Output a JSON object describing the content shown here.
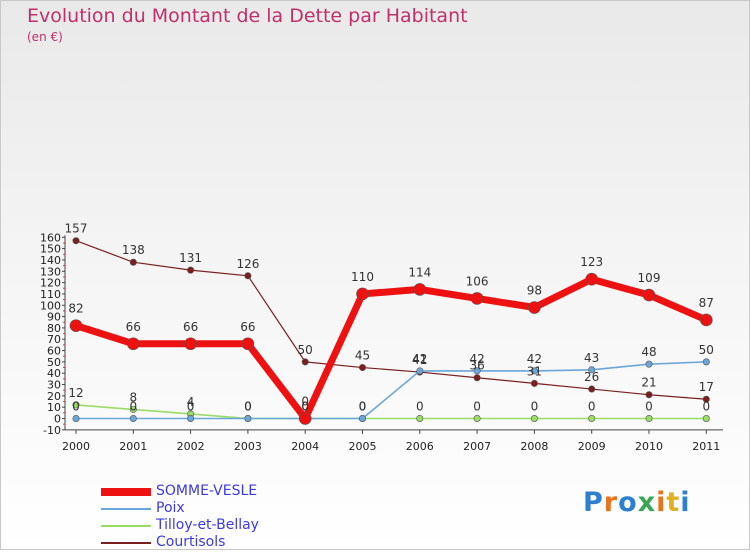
{
  "chart_data": {
    "type": "line",
    "title": "Evolution du Montant de la Dette par Habitant",
    "subtitle": "(en €)",
    "x": [
      "2000",
      "2001",
      "2002",
      "2003",
      "2004",
      "2005",
      "2006",
      "2007",
      "2008",
      "2009",
      "2010",
      "2011"
    ],
    "ylim": [
      -10,
      160
    ],
    "yticks": [
      -10,
      0,
      10,
      20,
      30,
      40,
      50,
      60,
      70,
      80,
      90,
      100,
      110,
      120,
      130,
      140,
      150,
      160
    ],
    "grid": false,
    "legend_position": "bottom-left",
    "series": [
      {
        "name": "SOMME-VESLE",
        "color": "#ee1111",
        "values": [
          82,
          66,
          66,
          66,
          0,
          110,
          114,
          106,
          98,
          123,
          109,
          87
        ]
      },
      {
        "name": "Poix",
        "color": "#6aa6d8",
        "values": [
          0,
          0,
          0,
          0,
          0,
          0,
          42,
          42,
          42,
          43,
          48,
          50
        ]
      },
      {
        "name": "Tilloy-et-Bellay",
        "color": "#99dd66",
        "values": [
          12,
          8,
          4,
          0,
          0,
          0,
          0,
          0,
          0,
          0,
          0,
          0
        ]
      },
      {
        "name": "Courtisols",
        "color": "#7a1f1f",
        "values": [
          157,
          138,
          131,
          126,
          50,
          45,
          41,
          36,
          31,
          26,
          21,
          17
        ]
      }
    ]
  },
  "logo": {
    "text": "Proxiti",
    "colors": [
      "#2e7fd0",
      "#e8741e",
      "#2e7fd0",
      "#3aa655",
      "#e8741e",
      "#e0b020",
      "#2e7fd0"
    ]
  }
}
